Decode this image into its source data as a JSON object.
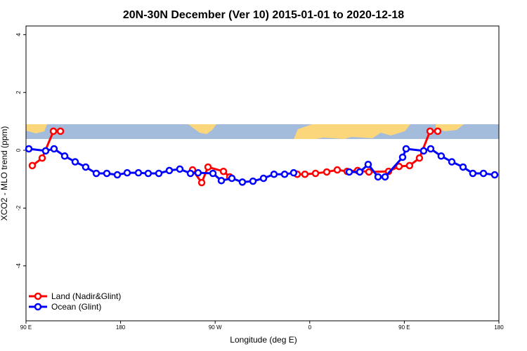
{
  "chart_data": {
    "type": "line",
    "title": "20N-30N December (Ver 10)   2015-01-01 to 2020-12-18",
    "x_label": "Longitude (deg E)",
    "y_label": "XCO2 - MLO trend (ppm)",
    "xlim": [
      90,
      540
    ],
    "xticks": [
      {
        "value": 90,
        "label": "90 E"
      },
      {
        "value": 180,
        "label": "180"
      },
      {
        "value": 270,
        "label": "90 W"
      },
      {
        "value": 360,
        "label": "0"
      },
      {
        "value": 450,
        "label": "90 E"
      },
      {
        "value": 540,
        "label": "180"
      }
    ],
    "ylim": [
      -5.9,
      4.3
    ],
    "yticks": [
      -4,
      -2,
      0,
      2,
      4
    ],
    "legend": "bottom-left",
    "series": [
      {
        "name": "Land (Nadir&Glint)",
        "color": "#ff0000",
        "x": [
          96,
          105.4,
          116.1,
          122.8,
          null,
          248.5,
          257.2,
          263.2,
          277.9,
          283.9,
          null,
          348.1,
          355.4,
          365.5,
          376.2,
          386.2,
          395.6,
          405.6,
          416.3,
          435,
          445,
          455,
          464.4,
          474.5,
          481.8
        ],
        "values": [
          -0.53,
          -0.27,
          0.66,
          0.66,
          null,
          -0.68,
          -1.12,
          -0.58,
          -0.73,
          -0.92,
          null,
          -0.83,
          -0.83,
          -0.8,
          -0.75,
          -0.68,
          -0.73,
          -0.7,
          -0.75,
          -0.73,
          -0.56,
          -0.53,
          -0.27,
          0.66,
          0.66
        ]
      },
      {
        "name": "Ocean (Glint)",
        "color": "#0000ff",
        "x": [
          92.7,
          108.7,
          116.7,
          126.8,
          136.8,
          146.8,
          156.9,
          166.9,
          176.9,
          186.3,
          197,
          206.3,
          216.4,
          226.4,
          236.4,
          246.5,
          253.8,
          267.9,
          275.9,
          285.9,
          295.9,
          306,
          316,
          326,
          336.1,
          344.7,
          null,
          397.6,
          407.6,
          415.6,
          425,
          431.7,
          448.4,
          451.7,
          468.4,
          475.1,
          485.1,
          495.2,
          505.9,
          515.2,
          525.3,
          536
        ],
        "values": [
          0.05,
          -0.02,
          0.05,
          -0.2,
          -0.4,
          -0.58,
          -0.8,
          -0.8,
          -0.85,
          -0.78,
          -0.78,
          -0.8,
          -0.8,
          -0.7,
          -0.65,
          -0.8,
          -0.78,
          -0.8,
          -1.05,
          -0.97,
          -1.1,
          -1.07,
          -0.97,
          -0.83,
          -0.83,
          -0.78,
          null,
          -0.75,
          -0.75,
          -0.49,
          -0.92,
          -0.92,
          -0.24,
          0.05,
          -0.02,
          0.05,
          -0.2,
          -0.4,
          -0.58,
          -0.8,
          -0.8,
          -0.85
        ]
      }
    ]
  }
}
